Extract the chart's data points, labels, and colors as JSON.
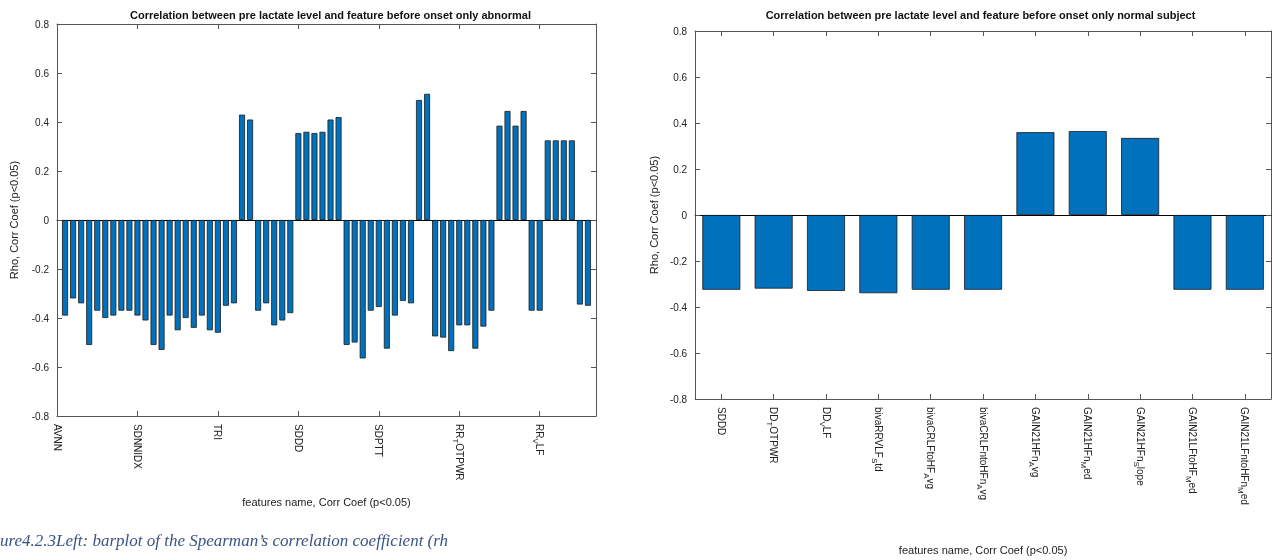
{
  "chart_data": [
    {
      "type": "bar",
      "title": "Correlation between pre lactate level and feature before onset only abnormal",
      "xlabel": "features name, Corr Coef (p<0.05)",
      "ylabel": "Rho, Corr Coef (p<0.05)",
      "color": "#0072bd",
      "categories": [
        "AVNN",
        null,
        null,
        null,
        null,
        null,
        null,
        null,
        null,
        null,
        "SDNNIDX",
        null,
        null,
        null,
        null,
        null,
        null,
        null,
        null,
        null,
        "TRI",
        null,
        null,
        null,
        null,
        null,
        null,
        null,
        null,
        null,
        "SDDD",
        null,
        null,
        null,
        null,
        null,
        null,
        null,
        null,
        null,
        "SDPTT",
        null,
        null,
        null,
        null,
        null,
        null,
        null,
        null,
        null,
        "RR$_{T}$OTPWR",
        null,
        null,
        null,
        null,
        null,
        null,
        null,
        null,
        null,
        "RR$_{V}$LF",
        null,
        null,
        null,
        null,
        null,
        null,
        null
      ],
      "values": [
        null,
        -0.39,
        -0.32,
        -0.34,
        -0.51,
        -0.37,
        -0.4,
        -0.39,
        -0.37,
        -0.37,
        -0.39,
        -0.41,
        -0.51,
        -0.53,
        -0.39,
        -0.45,
        -0.4,
        -0.44,
        -0.39,
        -0.45,
        -0.46,
        -0.35,
        -0.34,
        0.43,
        0.41,
        -0.37,
        -0.34,
        -0.43,
        -0.41,
        -0.38,
        0.355,
        0.36,
        0.355,
        0.36,
        0.41,
        0.42,
        -0.51,
        -0.5,
        -0.565,
        -0.37,
        -0.355,
        -0.525,
        -0.39,
        -0.33,
        -0.34,
        0.49,
        0.515,
        -0.475,
        -0.48,
        -0.535,
        -0.43,
        -0.43,
        -0.525,
        -0.435,
        -0.37,
        0.385,
        0.445,
        0.385,
        0.445,
        -0.37,
        -0.37,
        0.325,
        0.325,
        0.325,
        0.325,
        -0.345,
        -0.35,
        null
      ],
      "ylim": [
        -0.8,
        0.8
      ],
      "yticks": [
        -0.8,
        -0.6,
        -0.4,
        -0.2,
        0,
        0.2,
        0.4,
        0.6,
        0.8
      ],
      "annotations": [
        "ure4.2.3Left: barplot of the Spearman’s correlation coefficient (rh"
      ]
    },
    {
      "type": "bar",
      "title": "Correlation between pre lactate level and feature before onset only normal subject",
      "xlabel": "features name, Corr Coef (p<0.05)",
      "ylabel": "Rho, Corr Coef (p<0.05)",
      "color": "#0072bd",
      "categories": [
        "SDDD",
        "DD$_{T}$OTPWR",
        "DD$_{V}$LF",
        "bivaRRVLF$_{S}$td",
        "bivaCRLFtoHF$_{A}$vg",
        "bivaCRLFntoHFn$_{A}$vg",
        "GAIN21HFn$_{A}$vg",
        "GAIN21HFn$_{M}$ed",
        "GAIN21HFn$_{S}$lope",
        "GAIN21LFtoHF$_{M}$ed",
        "GAIN21LFntoHFn$_{M}$ed"
      ],
      "values": [
        -0.325,
        -0.32,
        -0.33,
        -0.34,
        -0.325,
        -0.325,
        0.36,
        0.365,
        0.335,
        -0.325,
        -0.325
      ],
      "ylim": [
        -0.8,
        0.8
      ],
      "yticks": [
        -0.8,
        -0.6,
        -0.4,
        -0.2,
        0,
        0.2,
        0.4,
        0.6,
        0.8
      ]
    }
  ]
}
